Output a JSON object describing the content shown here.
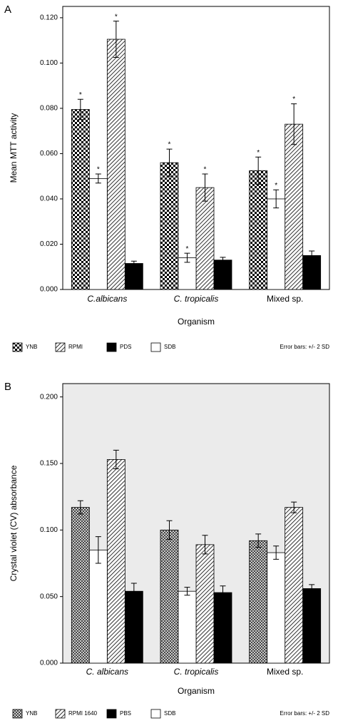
{
  "chart_data": [
    {
      "type": "bar",
      "panel_label": "A",
      "y_label": "Mean MTT activity",
      "x_label": "Organism",
      "note": "Error bars: +/- 2 SD",
      "background": "#ffffff",
      "categories": [
        "C.albicans",
        "C. tropicalis",
        "Mixed sp."
      ],
      "series": [
        {
          "name": "YNB",
          "color": "#000000",
          "pattern": "checker",
          "values": [
            0.0795,
            0.056,
            0.0525
          ],
          "errors": [
            0.0045,
            0.006,
            0.006
          ],
          "flags": [
            "*",
            "*",
            "*"
          ]
        },
        {
          "name": "RPMI",
          "color": "#000000",
          "pattern": "hatch",
          "values": [
            0.1105,
            0.045,
            0.073
          ],
          "errors": [
            0.008,
            0.006,
            0.009
          ],
          "flags": [
            "*",
            "*",
            "*"
          ]
        },
        {
          "name": "PDS",
          "color": "#000000",
          "pattern": "solid",
          "values": [
            0.0115,
            0.013,
            0.015
          ],
          "errors": [
            0.001,
            0.0012,
            0.002
          ]
        },
        {
          "name": "SDB",
          "color": "#000000",
          "pattern": "none",
          "values": [
            0.049,
            0.014,
            0.04
          ],
          "errors": [
            0.002,
            0.002,
            0.004
          ],
          "flags": [
            "*",
            "*",
            "*"
          ]
        }
      ],
      "ylim": [
        0,
        0.125
      ],
      "yticks": [
        {
          "value": 0,
          "label": "0.000"
        },
        {
          "value": 0.02,
          "label": "0.020"
        },
        {
          "value": 0.04,
          "label": "0.040"
        },
        {
          "value": 0.06,
          "label": "0.060"
        },
        {
          "value": 0.08,
          "label": "0.080"
        },
        {
          "value": 0.1,
          "label": "0.100"
        },
        {
          "value": 0.12,
          "label": "0.120"
        }
      ]
    },
    {
      "type": "bar",
      "panel_label": "B",
      "y_label": "Crystal violet (CV) absorbance",
      "x_label": "Organism",
      "note": "Error bars: +/- 2 SD",
      "background": "#ebebeb",
      "categories": [
        "C. albicans",
        "C. tropicalis",
        "Mixed sp."
      ],
      "series": [
        {
          "name": "YNB",
          "color": "#555555",
          "pattern": "cross",
          "values": [
            0.117,
            0.1,
            0.092
          ],
          "errors": [
            0.005,
            0.007,
            0.005
          ]
        },
        {
          "name": "RPMI 1640",
          "color": "#555555",
          "pattern": "hatch",
          "values": [
            0.153,
            0.089,
            0.117
          ],
          "errors": [
            0.007,
            0.007,
            0.004
          ]
        },
        {
          "name": "PBS",
          "color": "#000000",
          "pattern": "solid",
          "values": [
            0.054,
            0.053,
            0.056
          ],
          "errors": [
            0.006,
            0.005,
            0.003
          ]
        },
        {
          "name": "SDB",
          "color": "#000000",
          "pattern": "none",
          "values": [
            0.085,
            0.054,
            0.083
          ],
          "errors": [
            0.01,
            0.003,
            0.005
          ]
        }
      ],
      "ylim": [
        0,
        0.21
      ],
      "yticks": [
        {
          "value": 0,
          "label": "0.000"
        },
        {
          "value": 0.05,
          "label": "0.050"
        },
        {
          "value": 0.1,
          "label": "0.100"
        },
        {
          "value": 0.15,
          "label": "0.150"
        },
        {
          "value": 0.2,
          "label": "0.200"
        }
      ]
    }
  ]
}
